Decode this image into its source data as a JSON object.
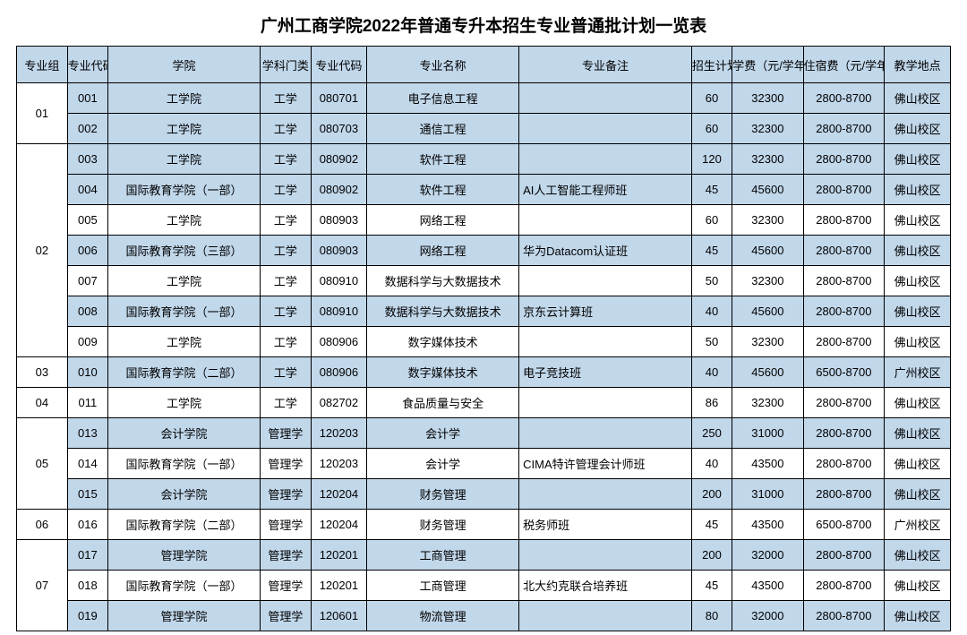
{
  "title": "广州工商学院2022年普通专升本招生专业普通批计划一览表",
  "columns": [
    "专业组",
    "专业代码",
    "学院",
    "学科门类",
    "专业代码",
    "专业名称",
    "专业备注",
    "招生计划",
    "学费（元/学年）",
    "住宿费（元/学年）",
    "教学地点"
  ],
  "colors": {
    "header_bg": "#c1d7ea",
    "border": "#000000",
    "page_bg": "#ffffff",
    "text": "#000000"
  },
  "groups": [
    {
      "group": "01",
      "rows": [
        {
          "code": "001",
          "college": "工学院",
          "disc": "工学",
          "majcode": "080701",
          "major": "电子信息工程",
          "note": "",
          "plan": "60",
          "fee": "32300",
          "dorm": "2800-8700",
          "campus": "佛山校区",
          "shade": true
        },
        {
          "code": "002",
          "college": "工学院",
          "disc": "工学",
          "majcode": "080703",
          "major": "通信工程",
          "note": "",
          "plan": "60",
          "fee": "32300",
          "dorm": "2800-8700",
          "campus": "佛山校区",
          "shade": true
        }
      ]
    },
    {
      "group": "02",
      "rows": [
        {
          "code": "003",
          "college": "工学院",
          "disc": "工学",
          "majcode": "080902",
          "major": "软件工程",
          "note": "",
          "plan": "120",
          "fee": "32300",
          "dorm": "2800-8700",
          "campus": "佛山校区",
          "shade": true
        },
        {
          "code": "004",
          "college": "国际教育学院（一部）",
          "disc": "工学",
          "majcode": "080902",
          "major": "软件工程",
          "note": "AI人工智能工程师班",
          "plan": "45",
          "fee": "45600",
          "dorm": "2800-8700",
          "campus": "佛山校区",
          "shade": true
        },
        {
          "code": "005",
          "college": "工学院",
          "disc": "工学",
          "majcode": "080903",
          "major": "网络工程",
          "note": "",
          "plan": "60",
          "fee": "32300",
          "dorm": "2800-8700",
          "campus": "佛山校区",
          "shade": false
        },
        {
          "code": "006",
          "college": "国际教育学院（三部）",
          "disc": "工学",
          "majcode": "080903",
          "major": "网络工程",
          "note": "华为Datacom认证班",
          "plan": "45",
          "fee": "45600",
          "dorm": "2800-8700",
          "campus": "佛山校区",
          "shade": true
        },
        {
          "code": "007",
          "college": "工学院",
          "disc": "工学",
          "majcode": "080910",
          "major": "数据科学与大数据技术",
          "note": "",
          "plan": "50",
          "fee": "32300",
          "dorm": "2800-8700",
          "campus": "佛山校区",
          "shade": false
        },
        {
          "code": "008",
          "college": "国际教育学院（一部）",
          "disc": "工学",
          "majcode": "080910",
          "major": "数据科学与大数据技术",
          "note": "京东云计算班",
          "plan": "40",
          "fee": "45600",
          "dorm": "2800-8700",
          "campus": "佛山校区",
          "shade": true
        },
        {
          "code": "009",
          "college": "工学院",
          "disc": "工学",
          "majcode": "080906",
          "major": "数字媒体技术",
          "note": "",
          "plan": "50",
          "fee": "32300",
          "dorm": "2800-8700",
          "campus": "佛山校区",
          "shade": false
        }
      ]
    },
    {
      "group": "03",
      "rows": [
        {
          "code": "010",
          "college": "国际教育学院（二部）",
          "disc": "工学",
          "majcode": "080906",
          "major": "数字媒体技术",
          "note": "电子竞技班",
          "plan": "40",
          "fee": "45600",
          "dorm": "6500-8700",
          "campus": "广州校区",
          "shade": true
        }
      ]
    },
    {
      "group": "04",
      "rows": [
        {
          "code": "011",
          "college": "工学院",
          "disc": "工学",
          "majcode": "082702",
          "major": "食品质量与安全",
          "note": "",
          "plan": "86",
          "fee": "32300",
          "dorm": "2800-8700",
          "campus": "佛山校区",
          "shade": false
        }
      ]
    },
    {
      "group": "05",
      "rows": [
        {
          "code": "013",
          "college": "会计学院",
          "disc": "管理学",
          "majcode": "120203",
          "major": "会计学",
          "note": "",
          "plan": "250",
          "fee": "31000",
          "dorm": "2800-8700",
          "campus": "佛山校区",
          "shade": true
        },
        {
          "code": "014",
          "college": "国际教育学院（一部）",
          "disc": "管理学",
          "majcode": "120203",
          "major": "会计学",
          "note": "CIMA特许管理会计师班",
          "plan": "40",
          "fee": "43500",
          "dorm": "2800-8700",
          "campus": "佛山校区",
          "shade": false
        },
        {
          "code": "015",
          "college": "会计学院",
          "disc": "管理学",
          "majcode": "120204",
          "major": "财务管理",
          "note": "",
          "plan": "200",
          "fee": "31000",
          "dorm": "2800-8700",
          "campus": "佛山校区",
          "shade": true
        }
      ]
    },
    {
      "group": "06",
      "rows": [
        {
          "code": "016",
          "college": "国际教育学院（二部）",
          "disc": "管理学",
          "majcode": "120204",
          "major": "财务管理",
          "note": "税务师班",
          "plan": "45",
          "fee": "43500",
          "dorm": "6500-8700",
          "campus": "广州校区",
          "shade": false
        }
      ]
    },
    {
      "group": "07",
      "rows": [
        {
          "code": "017",
          "college": "管理学院",
          "disc": "管理学",
          "majcode": "120201",
          "major": "工商管理",
          "note": "",
          "plan": "200",
          "fee": "32000",
          "dorm": "2800-8700",
          "campus": "佛山校区",
          "shade": true
        },
        {
          "code": "018",
          "college": "国际教育学院（一部）",
          "disc": "管理学",
          "majcode": "120201",
          "major": "工商管理",
          "note": "北大约克联合培养班",
          "plan": "45",
          "fee": "43500",
          "dorm": "2800-8700",
          "campus": "佛山校区",
          "shade": false
        },
        {
          "code": "019",
          "college": "管理学院",
          "disc": "管理学",
          "majcode": "120601",
          "major": "物流管理",
          "note": "",
          "plan": "80",
          "fee": "32000",
          "dorm": "2800-8700",
          "campus": "佛山校区",
          "shade": true
        }
      ]
    }
  ]
}
